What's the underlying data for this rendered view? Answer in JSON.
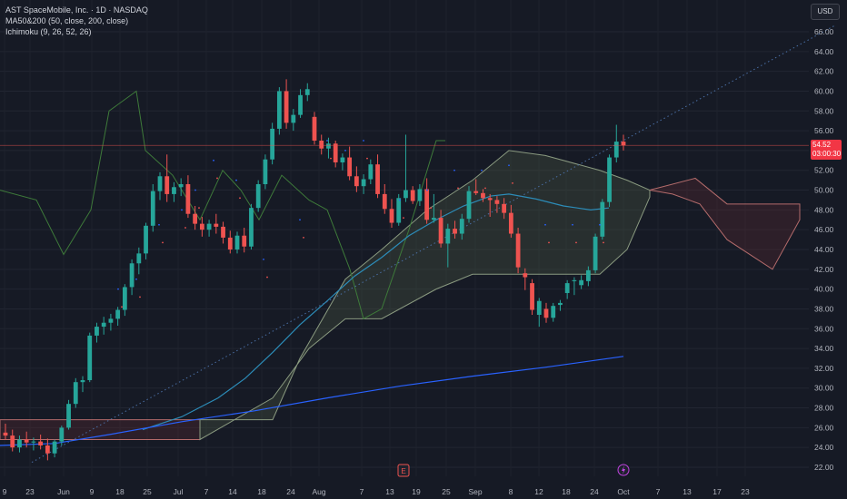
{
  "legend": {
    "title": "AST SpaceMobile, Inc. · 1D · NASDAQ",
    "ma": "MA50&200 (50, close, 200, close)",
    "ichimoku": "Ichimoku (9, 26, 52, 26)"
  },
  "currency": "USD",
  "last_price": {
    "value": "54.52",
    "countdown": "03:00:30"
  },
  "colors": {
    "up": "#26a69a",
    "down": "#ef5350",
    "ma50": "#2c8cb8",
    "ma200": "#2962ff",
    "cloud_up": "#4a5a42",
    "cloud_down": "#5a2a30",
    "bg": "#161a25"
  },
  "markers": {
    "earnings": "E",
    "dividend_icon": "lightning-icon"
  },
  "chart_data": {
    "type": "candlestick",
    "ylim": [
      21,
      67
    ],
    "y_ticks": [
      "66.00",
      "64.00",
      "62.00",
      "60.00",
      "58.00",
      "56.00",
      "54.00",
      "52.00",
      "50.00",
      "48.00",
      "46.00",
      "44.00",
      "42.00",
      "40.00",
      "38.00",
      "36.00",
      "34.00",
      "32.00",
      "30.00",
      "28.00",
      "26.00",
      "24.00",
      "22.00"
    ],
    "x_ticks": [
      "9",
      "23",
      "Jun",
      "9",
      "18",
      "25",
      "Jul",
      "7",
      "14",
      "18",
      "24",
      "Aug",
      "7",
      "13",
      "19",
      "25",
      "Sep",
      "8",
      "12",
      "18",
      "24",
      "Oct",
      "7",
      "13",
      "17",
      "23"
    ],
    "candles": [
      [
        25.5,
        26.4,
        24.8,
        25.2
      ],
      [
        25.2,
        25.8,
        23.6,
        24.0
      ],
      [
        24.0,
        25.2,
        23.5,
        24.8
      ],
      [
        24.8,
        25.6,
        24.0,
        24.5
      ],
      [
        24.5,
        25.0,
        23.7,
        24.6
      ],
      [
        24.6,
        25.3,
        23.8,
        24.2
      ],
      [
        24.2,
        24.9,
        22.7,
        23.4
      ],
      [
        23.4,
        24.8,
        23.0,
        24.6
      ],
      [
        24.6,
        26.2,
        24.2,
        26.0
      ],
      [
        26.0,
        28.8,
        25.8,
        28.4
      ],
      [
        28.4,
        31.0,
        28.0,
        30.6
      ],
      [
        30.6,
        31.2,
        29.6,
        30.8
      ],
      [
        30.8,
        35.6,
        30.6,
        35.3
      ],
      [
        35.3,
        36.6,
        34.6,
        36.2
      ],
      [
        36.2,
        37.2,
        35.4,
        36.6
      ],
      [
        36.6,
        37.5,
        35.8,
        37.0
      ],
      [
        37.0,
        38.2,
        36.3,
        37.9
      ],
      [
        37.9,
        40.5,
        37.3,
        40.2
      ],
      [
        40.2,
        43.0,
        39.4,
        42.6
      ],
      [
        42.6,
        44.2,
        41.5,
        43.6
      ],
      [
        43.6,
        46.7,
        43.0,
        46.4
      ],
      [
        46.4,
        50.6,
        45.8,
        49.9
      ],
      [
        49.9,
        51.8,
        49.0,
        51.4
      ],
      [
        51.4,
        53.6,
        48.8,
        49.6
      ],
      [
        49.6,
        50.8,
        48.8,
        50.3
      ],
      [
        50.3,
        51.2,
        49.4,
        50.6
      ],
      [
        50.6,
        51.5,
        47.2,
        47.6
      ],
      [
        47.6,
        48.4,
        46.0,
        46.6
      ],
      [
        46.6,
        47.3,
        45.3,
        46.0
      ],
      [
        46.0,
        47.0,
        45.3,
        46.6
      ],
      [
        46.6,
        47.6,
        45.6,
        46.3
      ],
      [
        46.3,
        46.8,
        44.6,
        45.2
      ],
      [
        45.2,
        45.9,
        43.6,
        44.0
      ],
      [
        44.0,
        45.8,
        43.6,
        45.4
      ],
      [
        45.4,
        46.2,
        43.7,
        44.3
      ],
      [
        44.3,
        48.6,
        44.0,
        48.2
      ],
      [
        48.2,
        51.0,
        47.8,
        50.6
      ],
      [
        50.6,
        53.6,
        50.1,
        53.1
      ],
      [
        53.1,
        56.8,
        52.6,
        56.2
      ],
      [
        56.2,
        60.4,
        55.6,
        60.0
      ],
      [
        60.0,
        61.2,
        56.2,
        56.8
      ],
      [
        56.8,
        58.2,
        56.0,
        57.6
      ],
      [
        57.6,
        60.2,
        57.3,
        59.6
      ],
      [
        59.6,
        60.8,
        59.0,
        60.2
      ],
      [
        57.4,
        57.9,
        54.6,
        55.0
      ],
      [
        55.0,
        55.6,
        53.6,
        54.2
      ],
      [
        54.2,
        55.3,
        53.2,
        54.7
      ],
      [
        54.7,
        55.0,
        52.3,
        52.8
      ],
      [
        52.8,
        53.7,
        52.0,
        53.3
      ],
      [
        53.3,
        54.4,
        51.0,
        51.4
      ],
      [
        51.4,
        52.4,
        49.8,
        50.4
      ],
      [
        50.4,
        51.6,
        49.6,
        51.1
      ],
      [
        51.1,
        53.1,
        50.6,
        52.6
      ],
      [
        52.6,
        53.6,
        49.2,
        49.6
      ],
      [
        49.6,
        50.6,
        47.6,
        48.1
      ],
      [
        48.1,
        49.1,
        46.2,
        46.7
      ],
      [
        46.7,
        49.6,
        46.4,
        49.2
      ],
      [
        49.2,
        55.6,
        48.8,
        50.0
      ],
      [
        50.0,
        50.4,
        48.6,
        48.9
      ],
      [
        48.9,
        50.6,
        48.4,
        50.1
      ],
      [
        50.1,
        51.2,
        46.6,
        47.0
      ],
      [
        47.0,
        49.6,
        46.7,
        47.2
      ],
      [
        47.2,
        48.0,
        44.2,
        44.6
      ],
      [
        44.6,
        46.6,
        42.2,
        46.1
      ],
      [
        46.1,
        46.9,
        45.1,
        45.6
      ],
      [
        45.6,
        47.6,
        45.0,
        47.1
      ],
      [
        47.1,
        50.4,
        46.7,
        49.9
      ],
      [
        49.9,
        51.1,
        49.5,
        49.7
      ],
      [
        49.7,
        50.1,
        48.8,
        49.2
      ],
      [
        49.2,
        49.6,
        47.3,
        49.0
      ],
      [
        49.0,
        49.4,
        47.7,
        48.6
      ],
      [
        48.6,
        49.2,
        47.1,
        47.7
      ],
      [
        47.7,
        48.5,
        45.2,
        45.6
      ],
      [
        45.6,
        46.2,
        41.6,
        42.2
      ],
      [
        41.6,
        42.1,
        39.9,
        41.2
      ],
      [
        40.6,
        41.0,
        37.4,
        37.9
      ],
      [
        37.4,
        39.1,
        36.2,
        38.8
      ],
      [
        38.0,
        38.6,
        36.6,
        37.1
      ],
      [
        37.1,
        38.6,
        36.7,
        38.3
      ],
      [
        38.4,
        38.9,
        37.8,
        38.6
      ],
      [
        39.6,
        40.9,
        39.0,
        40.6
      ],
      [
        40.8,
        41.2,
        39.4,
        40.9
      ],
      [
        40.4,
        41.4,
        40.0,
        40.9
      ],
      [
        40.8,
        42.3,
        40.3,
        41.9
      ],
      [
        41.9,
        45.6,
        41.6,
        45.3
      ],
      [
        45.3,
        49.1,
        45.0,
        48.8
      ],
      [
        48.8,
        53.6,
        48.3,
        53.3
      ],
      [
        53.3,
        56.6,
        52.8,
        54.9
      ],
      [
        54.9,
        55.6,
        54.0,
        54.52
      ]
    ],
    "ma50": [
      [
        157,
        25.8
      ],
      [
        200,
        27.1
      ],
      [
        240,
        29.0
      ],
      [
        270,
        31.0
      ],
      [
        300,
        33.6
      ],
      [
        330,
        36.4
      ],
      [
        360,
        38.8
      ],
      [
        390,
        41.3
      ],
      [
        420,
        43.2
      ],
      [
        450,
        45.4
      ],
      [
        480,
        47.0
      ],
      [
        510,
        48.4
      ],
      [
        540,
        49.4
      ],
      [
        560,
        49.6
      ],
      [
        590,
        49.1
      ],
      [
        620,
        48.4
      ],
      [
        650,
        48.0
      ],
      [
        670,
        48.2
      ]
    ],
    "ma200": [
      [
        0,
        24.2
      ],
      [
        60,
        24.4
      ],
      [
        120,
        25.3
      ],
      [
        200,
        26.6
      ],
      [
        280,
        27.7
      ],
      [
        360,
        29.0
      ],
      [
        440,
        30.2
      ],
      [
        520,
        31.2
      ],
      [
        600,
        32.1
      ],
      [
        686,
        33.2
      ]
    ],
    "trendline": [
      [
        35,
        22.5
      ],
      [
        918,
        66.6
      ]
    ],
    "current_price": 54.52
  }
}
